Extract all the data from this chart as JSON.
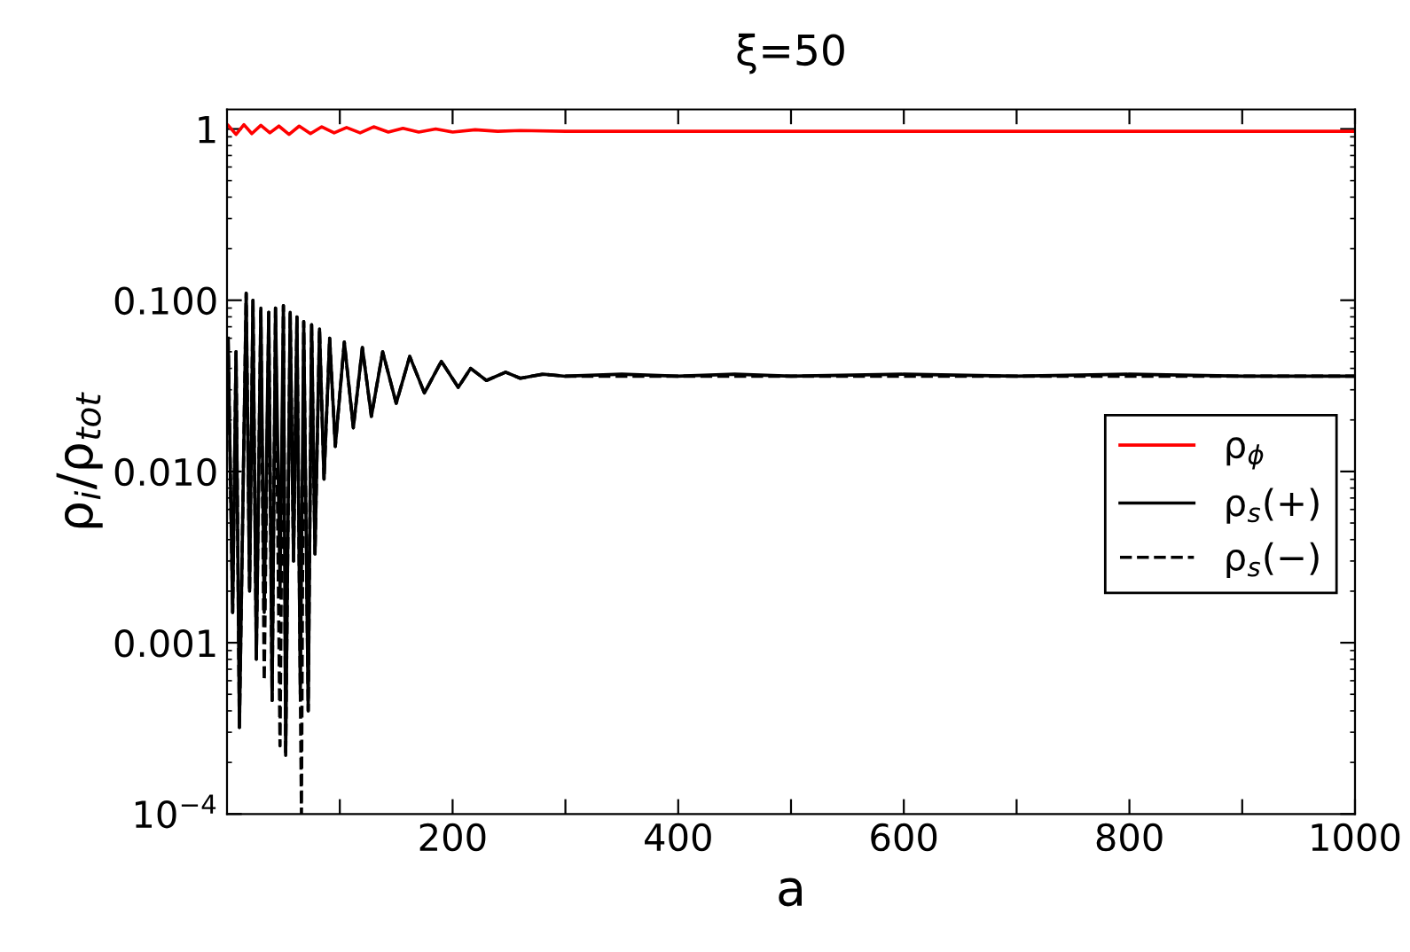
{
  "chart_data": {
    "type": "line",
    "title": "ξ=50",
    "xlabel": "a",
    "ylabel": "ρ$_{i}$/ρ$_{tot}$",
    "log": "y",
    "grid": false,
    "legend": "right",
    "marker": "none",
    "xlim": [
      0,
      1000
    ],
    "xticks": [
      {
        "value": 100,
        "label": null
      },
      200,
      {
        "value": 300,
        "label": null
      },
      400,
      {
        "value": 500,
        "label": null
      },
      600,
      {
        "value": 700,
        "label": null
      },
      800,
      {
        "value": 900,
        "label": null
      },
      1000
    ],
    "ylim": [
      0.0001,
      1.3
    ],
    "yticks": [
      {
        "value": 0.0001,
        "label": "10$^{−4}$"
      },
      {
        "value": 0.001,
        "label": "0.001"
      },
      {
        "value": 0.01,
        "label": "0.010"
      },
      {
        "value": 0.1,
        "label": "0.100"
      },
      1
    ],
    "series": [
      {
        "name": "ρ$_{ϕ}$",
        "color": "#ff0000",
        "line_style": "solid",
        "x": [
          1,
          8,
          15,
          22,
          30,
          38,
          46,
          55,
          64,
          74,
          84,
          95,
          106,
          118,
          130,
          143,
          156,
          170,
          185,
          200,
          220,
          240,
          260,
          300,
          400,
          500,
          600,
          700,
          800,
          900,
          1000
        ],
        "values": [
          1.05,
          0.93,
          1.06,
          0.94,
          1.05,
          0.95,
          1.04,
          0.93,
          1.04,
          0.94,
          1.03,
          0.95,
          1.02,
          0.95,
          1.03,
          0.96,
          1.01,
          0.96,
          1.0,
          0.96,
          0.99,
          0.97,
          0.98,
          0.97,
          0.97,
          0.97,
          0.97,
          0.97,
          0.97,
          0.97,
          0.97
        ]
      },
      {
        "name": "ρ$_{s}$(−)",
        "color": "#000000",
        "line_style": "dashed",
        "x": [
          1,
          5,
          8,
          11,
          17,
          20,
          23,
          26,
          30,
          33,
          37,
          40,
          43,
          47,
          50,
          52,
          56,
          59,
          62,
          66,
          68,
          72,
          75,
          78,
          82,
          86,
          91,
          96,
          104,
          112,
          120,
          128,
          138,
          150,
          162,
          175,
          190,
          205,
          216,
          230,
          247,
          260,
          280,
          300,
          400,
          500,
          600,
          700,
          800,
          900,
          1000
        ],
        "values": [
          0.06,
          0.0015,
          0.05,
          0.00032,
          0.11,
          0.002,
          0.1,
          0.0008,
          0.09,
          0.0006,
          0.085,
          0.00046,
          0.09,
          0.00025,
          0.093,
          0.00022,
          0.085,
          0.003,
          0.08,
          0.0001,
          0.075,
          0.0004,
          0.072,
          0.0033,
          0.068,
          0.009,
          0.06,
          0.014,
          0.057,
          0.018,
          0.053,
          0.021,
          0.05,
          0.025,
          0.047,
          0.0287,
          0.044,
          0.031,
          0.04,
          0.034,
          0.038,
          0.035,
          0.037,
          0.036,
          0.036,
          0.036,
          0.036,
          0.036,
          0.036,
          0.036,
          0.036
        ]
      },
      {
        "name": "ρ$_{s}$(+)",
        "color": "#000000",
        "line_style": "solid",
        "x": [
          1,
          5,
          8,
          11,
          17,
          20,
          23,
          26,
          30,
          33,
          37,
          40,
          43,
          47,
          50,
          52,
          56,
          59,
          62,
          65,
          68,
          72,
          75,
          78,
          82,
          86,
          91,
          96,
          104,
          112,
          120,
          128,
          138,
          150,
          162,
          175,
          190,
          205,
          216,
          230,
          247,
          260,
          280,
          300,
          350,
          400,
          450,
          500,
          600,
          700,
          800,
          900,
          1000
        ],
        "values": [
          0.06,
          0.0015,
          0.05,
          0.00032,
          0.11,
          0.002,
          0.1,
          0.0008,
          0.09,
          0.0015,
          0.085,
          0.00046,
          0.09,
          0.002,
          0.093,
          0.00022,
          0.085,
          0.003,
          0.08,
          0.0005,
          0.075,
          0.0004,
          0.072,
          0.0033,
          0.068,
          0.009,
          0.06,
          0.014,
          0.057,
          0.018,
          0.053,
          0.021,
          0.05,
          0.025,
          0.047,
          0.0287,
          0.044,
          0.031,
          0.04,
          0.034,
          0.038,
          0.035,
          0.037,
          0.036,
          0.037,
          0.036,
          0.037,
          0.036,
          0.037,
          0.036,
          0.037,
          0.036,
          0.036
        ]
      }
    ]
  }
}
